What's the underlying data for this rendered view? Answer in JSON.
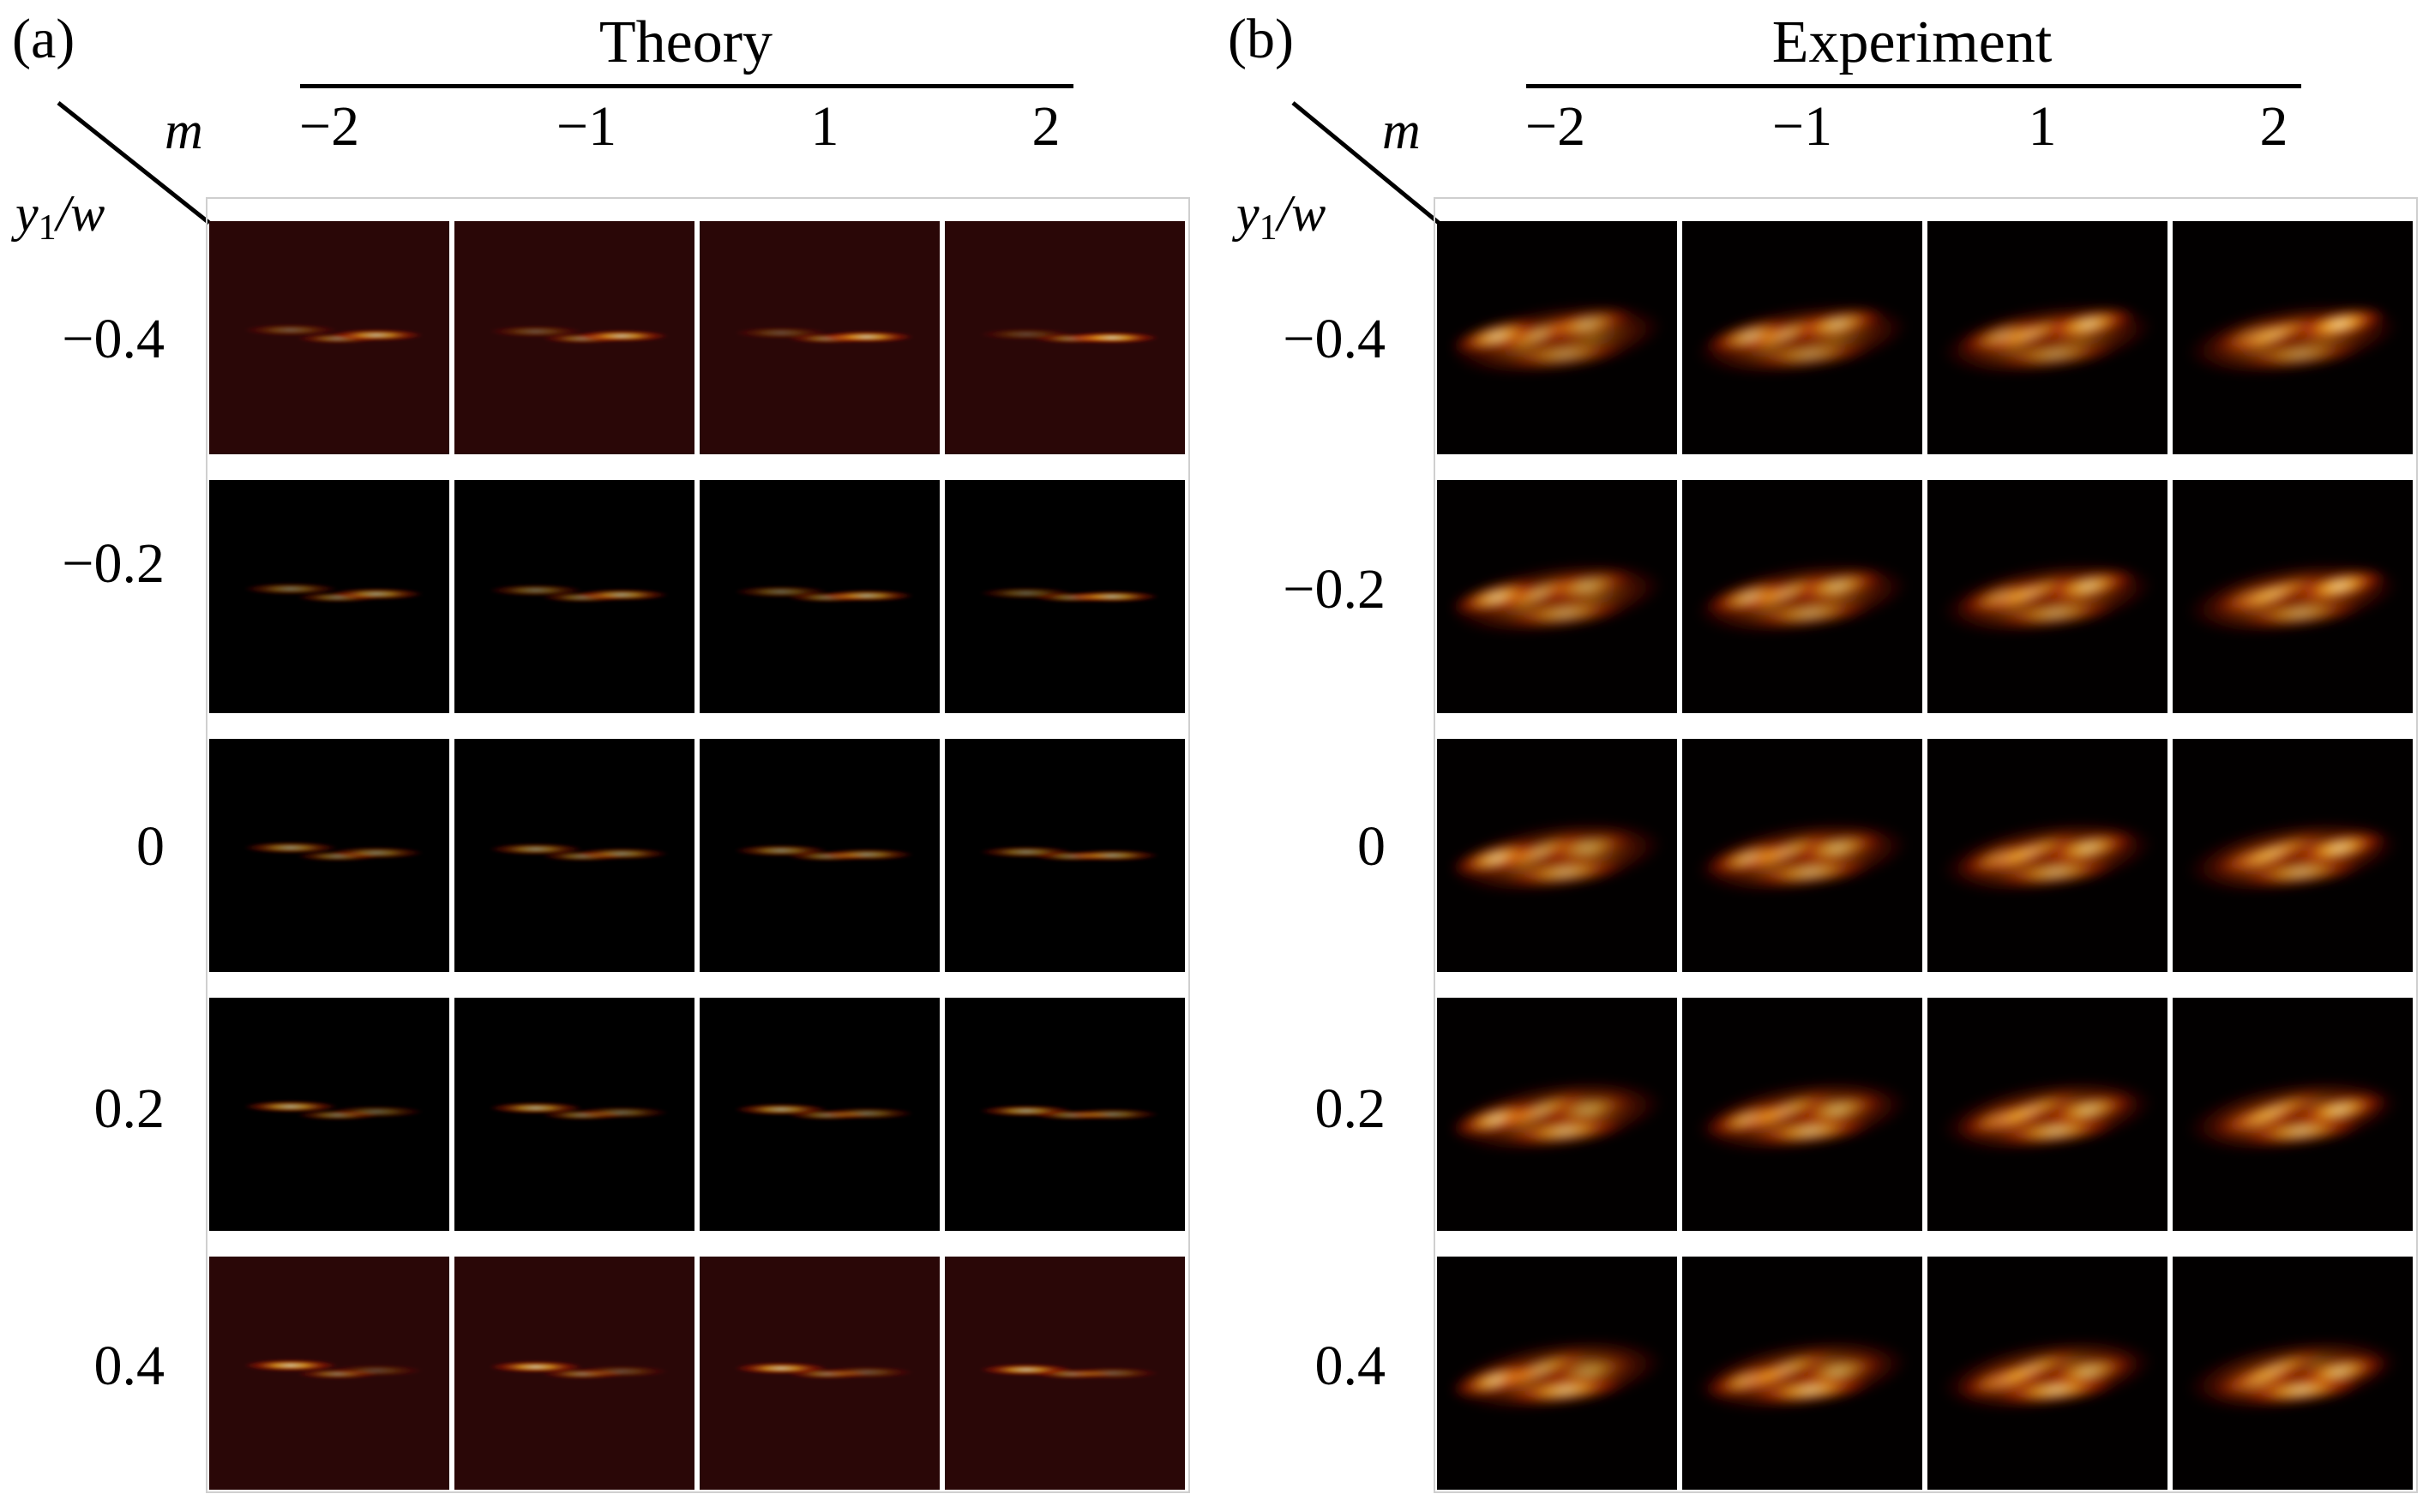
{
  "panels": [
    {
      "id": "a",
      "label": "(a)",
      "title": "Theory",
      "m_label": "m",
      "y_label_var": "y",
      "y_label_sub": "1",
      "y_label_rest": "/w"
    },
    {
      "id": "b",
      "label": "(b)",
      "title": "Experiment",
      "m_label": "m",
      "y_label_var": "y",
      "y_label_sub": "1",
      "y_label_rest": "/w"
    }
  ],
  "columns": [
    "−2",
    "−1",
    "1",
    "2"
  ],
  "rows": [
    "−0.4",
    "−0.2",
    "0",
    "0.2",
    "0.4"
  ],
  "colors": {
    "theory_bg_edge_rows": "#2a0707",
    "theory_bg_mid_rows": "#000000",
    "experiment_bg": "#020000",
    "glow_core": "#fffbd6",
    "glow_mid": "#ffb020",
    "glow_outer": "#c01a00"
  }
}
